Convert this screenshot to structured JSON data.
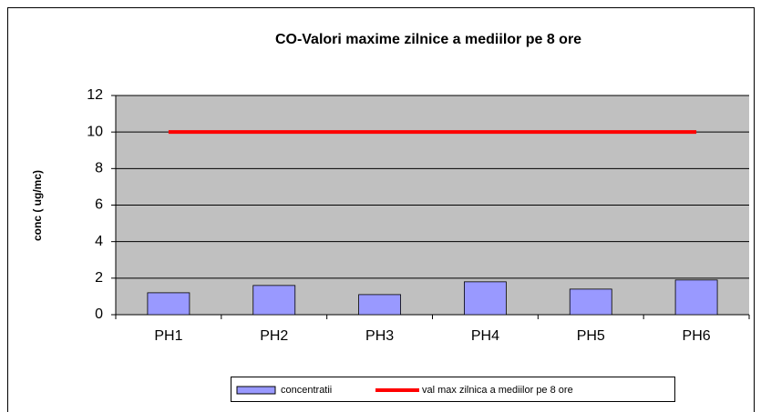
{
  "chart_data": {
    "type": "bar",
    "title": "CO-Valori maxime zilnice  a mediilor pe 8 ore",
    "y_label": "conc ( ug/mc)",
    "categories": [
      "PH1",
      "PH2",
      "PH3",
      "PH4",
      "PH5",
      "PH6"
    ],
    "series": [
      {
        "name": "concentratii",
        "type": "bar",
        "color": "#9999ff",
        "values": [
          1.2,
          1.6,
          1.1,
          1.8,
          1.4,
          1.9
        ]
      },
      {
        "name": "val max zilnica a mediilor  pe 8 ore",
        "type": "line",
        "color": "#ff0000",
        "values": [
          10,
          10,
          10,
          10,
          10,
          10
        ]
      }
    ],
    "ylim": [
      0,
      12
    ],
    "yticks": [
      0,
      2,
      4,
      6,
      8,
      10,
      12
    ],
    "grid": true,
    "legend": "bottom"
  }
}
